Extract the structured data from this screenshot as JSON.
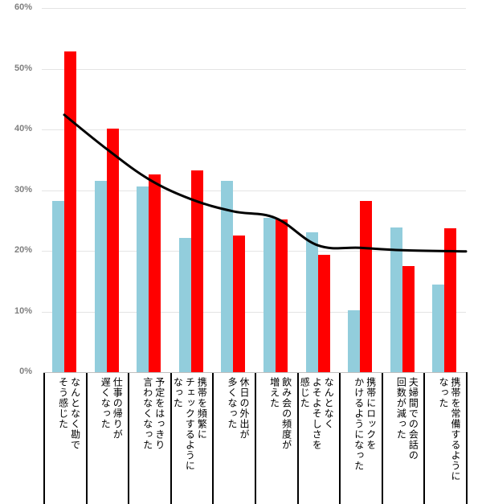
{
  "chart_data": {
    "type": "bar",
    "title": "",
    "xlabel": "",
    "ylabel": "",
    "ylim": [
      0,
      60
    ],
    "y_ticks": [
      "0%",
      "10%",
      "20%",
      "30%",
      "40%",
      "50%",
      "60%"
    ],
    "grid": true,
    "legend": null,
    "categories": [
      "なんとなく勘でそう感じた",
      "仕事の帰りが遅くなった",
      "予定をはっきり言わなくなった",
      "携帯を頻繁にチェックするようになった",
      "休日の外出が多くなった",
      "飲み会の頻度が増えた",
      "なんとなくよそよそしさを感じた",
      "携帯にロックをかけるようになった",
      "夫婦間での会話の回数が減った",
      "携帯を常備するようになった"
    ],
    "category_lines": [
      [
        "なんとなく勘で",
        "そう感じた"
      ],
      [
        "仕事の帰りが",
        "遅くなった"
      ],
      [
        "予定をはっきり",
        "言わなくなった"
      ],
      [
        "携帯を頻繁に",
        "チェックするように",
        "なった"
      ],
      [
        "休日の外出が",
        "多くなった"
      ],
      [
        "飲み会の頻度が",
        "増えた"
      ],
      [
        "なんとなく",
        "よそよそしさを",
        "感じた"
      ],
      [
        "携帯にロックを",
        "かけるようになった"
      ],
      [
        "夫婦間での会話の",
        "回数が減った"
      ],
      [
        "携帯を常備するように",
        "なった"
      ]
    ],
    "series": [
      {
        "name": "series-blue",
        "type": "bar",
        "color": "#92cddc",
        "values": [
          28.2,
          31.5,
          30.6,
          22.1,
          31.5,
          25.4,
          23.0,
          10.2,
          23.8,
          14.4
        ]
      },
      {
        "name": "series-red",
        "type": "bar",
        "color": "#ff0000",
        "values": [
          52.8,
          40.1,
          32.6,
          33.2,
          22.5,
          25.2,
          19.3,
          28.2,
          17.5,
          23.7
        ]
      },
      {
        "name": "trend-line",
        "type": "line",
        "color": "#000000",
        "values": [
          42.4,
          36.8,
          31.8,
          28.5,
          26.5,
          25.4,
          20.9,
          20.5,
          20.1,
          19.9
        ]
      }
    ]
  }
}
